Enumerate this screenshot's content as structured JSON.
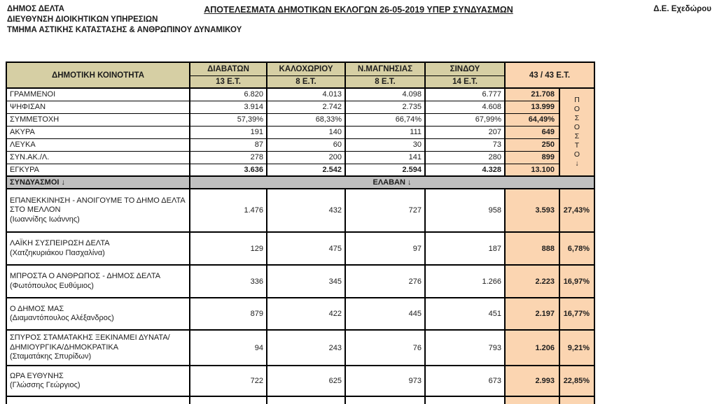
{
  "page": {
    "org_lines": [
      "ΔΗΜΟΣ ΔΕΛΤΑ",
      "ΔΙΕΥΘΥΝΣΗ ΔΙΟΙΚΗΤΙΚΩΝ ΥΠΗΡΕΣΙΩΝ",
      "ΤΜΗΜΑ ΑΣΤΙΚΗΣ ΚΑΤΑΣΤΑΣΗΣ & ΑΝΘΡΩΠΙΝΟΥ ΔΥΝΑΜΙΚΟΥ"
    ],
    "title": "ΑΠΟΤΕΛΕΣΜΑΤΑ ΔΗΜΟΤΙΚΩΝ ΕΚΛΟΓΩΝ 26-05-2019 ΥΠΕΡ ΣΥΝΔΥΑΣΜΩΝ",
    "unit": "Δ.Ε. Εχεδώρου"
  },
  "colors": {
    "header_bg": "#d6cfa4",
    "highlight_bg": "#fbd5b1",
    "section_bg": "#c0c0c0",
    "border": "#000000"
  },
  "table": {
    "first_col_header": "ΔΗΜΟΤΙΚΗ ΚΟΙΝΟΤΗΤΑ",
    "district_columns": [
      {
        "name": "ΔΙΑΒΑΤΩΝ",
        "stations": "13 Ε.Τ."
      },
      {
        "name": "ΚΑΛΟΧΩΡΙΟΥ",
        "stations": "8 Ε.Τ."
      },
      {
        "name": "Ν.ΜΑΓΝΗΣΙΑΣ",
        "stations": "8 Ε.Τ."
      },
      {
        "name": "ΣΙΝΔΟΥ",
        "stations": "14 Ε.Τ."
      }
    ],
    "total_header": "43 / 43 Ε.Τ.",
    "percent_header_letters": "ΠΟΣΟΣΤΟ",
    "percent_arrow": "↓",
    "stats_rows": [
      {
        "label": "ΓΡΑΜΜΕΝΟΙ",
        "values": [
          "6.820",
          "4.013",
          "4.098",
          "6.777"
        ],
        "total": "21.708",
        "bold_values": false
      },
      {
        "label": "ΨΗΦΙΣΑΝ",
        "values": [
          "3.914",
          "2.742",
          "2.735",
          "4.608"
        ],
        "total": "13.999",
        "bold_values": false
      },
      {
        "label": "ΣΥΜΜΕΤΟΧΗ",
        "values": [
          "57,39%",
          "68,33%",
          "66,74%",
          "67,99%"
        ],
        "total": "64,49%",
        "bold_values": false
      },
      {
        "label": "ΑΚΥΡΑ",
        "values": [
          "191",
          "140",
          "111",
          "207"
        ],
        "total": "649",
        "bold_values": false
      },
      {
        "label": "ΛΕΥΚΑ",
        "values": [
          "87",
          "60",
          "30",
          "73"
        ],
        "total": "250",
        "bold_values": false
      },
      {
        "label": "ΣΥΝ.ΑΚ./Λ.",
        "values": [
          "278",
          "200",
          "141",
          "280"
        ],
        "total": "899",
        "bold_values": false
      },
      {
        "label": "ΕΓΚΥΡΑ",
        "values": [
          "3.636",
          "2.542",
          "2.594",
          "4.328"
        ],
        "total": "13.100",
        "bold_values": true
      }
    ],
    "section_row": {
      "left": "ΣΥΝΔΥΑΣΜΟΙ ↓",
      "center": "ΕΛΑΒΑΝ  ↓"
    },
    "coalitions": [
      {
        "name": "ΕΠΑΝΕΚΚΙΝΗΣΗ - ΑΝΟΙΓΟΥΜΕ ΤΟ ΔΗΜΟ ΔΕΛΤΑ ΣΤΟ ΜΕΛΛΟΝ",
        "leader": "(Ιωαννίδης Ιωάννης)",
        "values": [
          "1.476",
          "432",
          "727",
          "958"
        ],
        "total": "3.593",
        "percent": "27,43%"
      },
      {
        "name": "ΛΑΪΚΗ ΣΥΣΠΕΙΡΩΣΗ ΔΕΛΤΑ",
        "leader": "(Χατζηκυριάκου Πασχαλίνα)",
        "values": [
          "129",
          "475",
          "97",
          "187"
        ],
        "total": "888",
        "percent": "6,78%"
      },
      {
        "name": "ΜΠΡΟΣΤΑ Ο ΑΝΘΡΩΠΟΣ - ΔΗΜΟΣ ΔΕΛΤΑ",
        "leader": "(Φωτόπουλος Ευθύμιος)",
        "values": [
          "336",
          "345",
          "276",
          "1.266"
        ],
        "total": "2.223",
        "percent": "16,97%"
      },
      {
        "name": "Ο ΔΗΜΟΣ ΜΑΣ",
        "leader": "(Διαμαντόπουλος Αλέξανδρος)",
        "values": [
          "879",
          "422",
          "445",
          "451"
        ],
        "total": "2.197",
        "percent": "16,77%"
      },
      {
        "name": "ΣΠΥΡΟΣ ΣΤΑΜΑΤΑΚΗΣ ΞΕΚΙΝΑΜΕΙ ΔΥΝΑΤΑ/ΔΗΜΙΟΥΡΓΙΚΑ/ΔΗΜΟΚΡΑΤΙΚΑ",
        "leader": "(Σταματάκης Σπυρίδων)",
        "values": [
          "94",
          "243",
          "76",
          "793"
        ],
        "total": "1.206",
        "percent": "9,21%"
      },
      {
        "name": "ΩΡΑ ΕΥΘΥΝΗΣ",
        "leader": "(Γλώσσης Γεώργιος)",
        "values": [
          "722",
          "625",
          "973",
          "673"
        ],
        "total": "2.993",
        "percent": "22,85%"
      }
    ]
  }
}
